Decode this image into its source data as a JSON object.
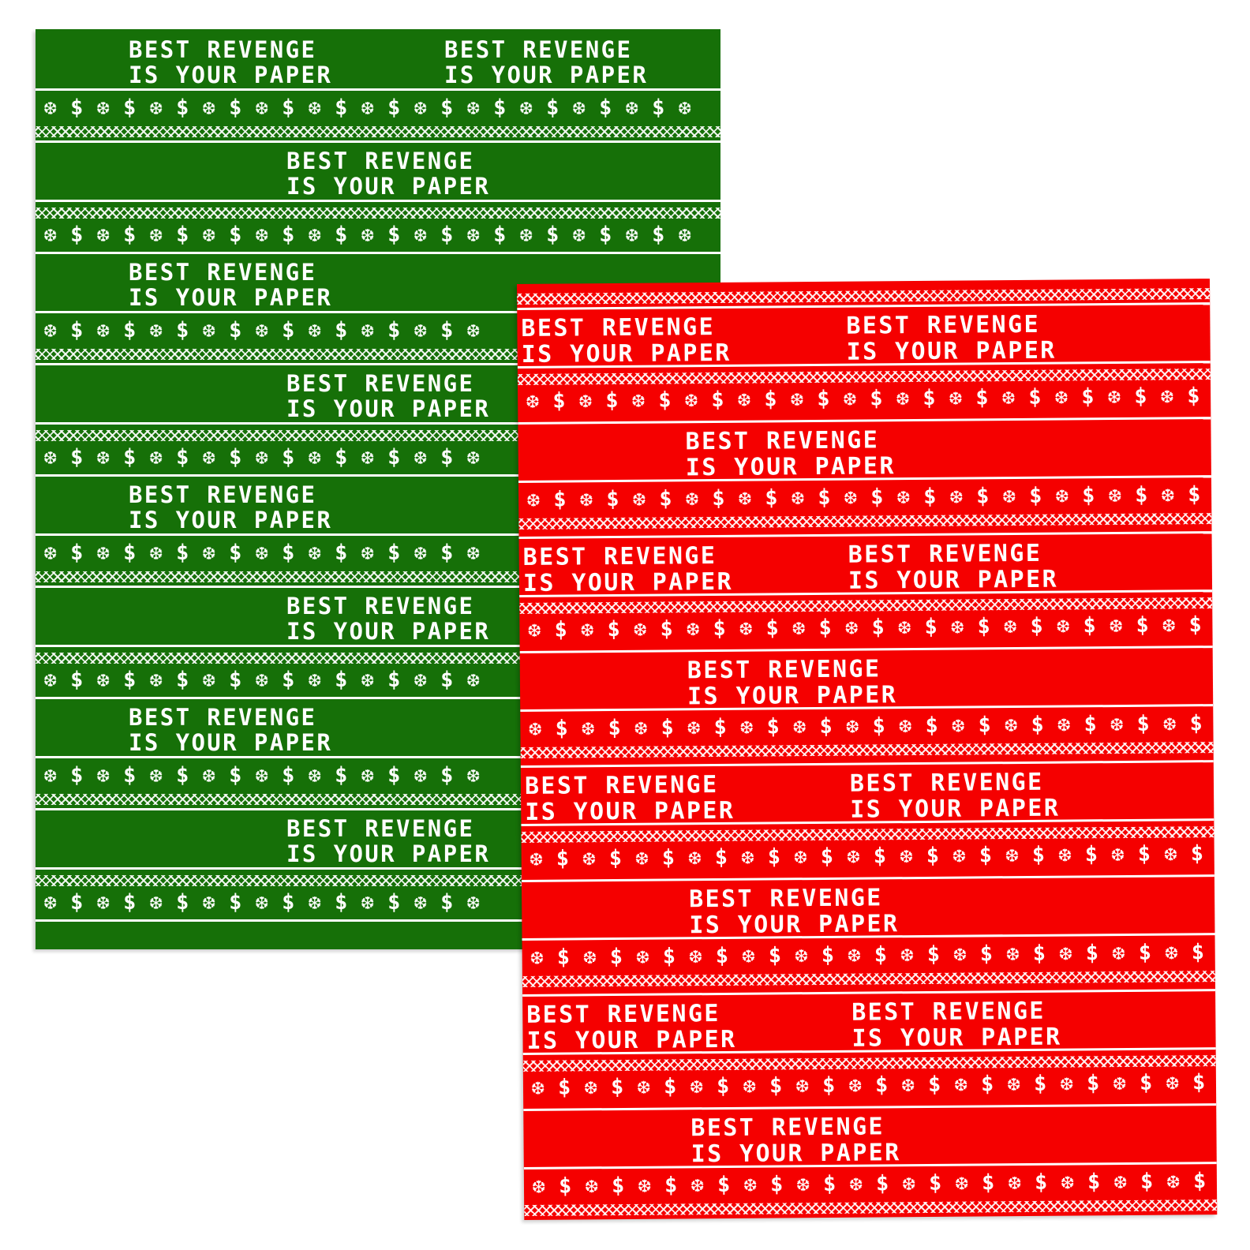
{
  "product": {
    "line1": "BEST REVENGE",
    "line2": "IS YOUR PAPER",
    "motif_icons": [
      "snowflake-icon",
      "dollar-sign-icon"
    ],
    "motif_glyphs": [
      "❆",
      "$"
    ]
  },
  "sheets": [
    {
      "id": "green",
      "name": "green-wrapping-paper-sheet",
      "color": "#167008"
    },
    {
      "id": "red",
      "name": "red-wrapping-paper-sheet",
      "color": "#f50000"
    }
  ]
}
